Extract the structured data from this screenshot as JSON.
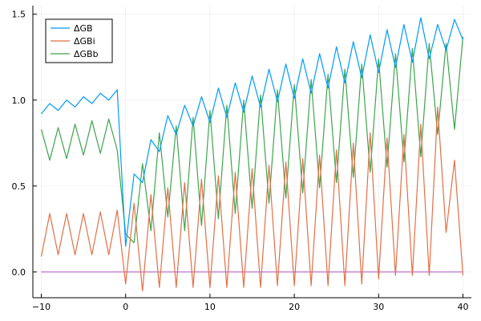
{
  "chart_data": {
    "type": "line",
    "title": "",
    "xlabel": "",
    "ylabel": "",
    "xlim": [
      -11,
      41
    ],
    "ylim": [
      -0.15,
      1.55
    ],
    "xticks": [
      -10,
      0,
      10,
      20,
      30,
      40
    ],
    "yticks": [
      0.0,
      0.5,
      1.0,
      1.5
    ],
    "xtick_labels": [
      "−10",
      "0",
      "10",
      "20",
      "30",
      "40"
    ],
    "ytick_labels": [
      "0.0",
      "0.5",
      "1.0",
      "1.5"
    ],
    "grid": true,
    "legend_position": "top-left",
    "x": [
      -10,
      -9,
      -8,
      -7,
      -6,
      -5,
      -4,
      -3,
      -2,
      -1,
      0,
      1,
      2,
      3,
      4,
      5,
      6,
      7,
      8,
      9,
      10,
      11,
      12,
      13,
      14,
      15,
      16,
      17,
      18,
      19,
      20,
      21,
      22,
      23,
      24,
      25,
      26,
      27,
      28,
      29,
      30,
      31,
      32,
      33,
      34,
      35,
      36,
      37,
      38,
      39,
      40
    ],
    "series": [
      {
        "name": "ΔGB",
        "color": "#009af9",
        "values": [
          0.92,
          0.98,
          0.94,
          1.0,
          0.96,
          1.02,
          0.98,
          1.04,
          1.0,
          1.06,
          0.15,
          0.57,
          0.52,
          0.77,
          0.7,
          0.91,
          0.8,
          0.97,
          0.85,
          1.02,
          0.87,
          1.07,
          0.9,
          1.1,
          0.93,
          1.14,
          0.96,
          1.18,
          0.99,
          1.21,
          1.01,
          1.24,
          1.04,
          1.27,
          1.07,
          1.31,
          1.1,
          1.34,
          1.13,
          1.38,
          1.16,
          1.41,
          1.19,
          1.44,
          1.22,
          1.48,
          1.24,
          1.44,
          1.29,
          1.47,
          1.35
        ]
      },
      {
        "name": "ΔGBi",
        "color": "#e26f46",
        "values": [
          0.09,
          0.34,
          0.1,
          0.34,
          0.1,
          0.34,
          0.1,
          0.35,
          0.1,
          0.36,
          -0.07,
          0.4,
          -0.11,
          0.45,
          -0.09,
          0.49,
          -0.09,
          0.52,
          -0.09,
          0.54,
          -0.09,
          0.56,
          -0.09,
          0.58,
          -0.09,
          0.6,
          -0.09,
          0.62,
          -0.08,
          0.64,
          -0.08,
          0.66,
          -0.08,
          0.68,
          -0.08,
          0.71,
          -0.08,
          0.75,
          -0.07,
          0.81,
          -0.04,
          0.78,
          -0.02,
          0.8,
          -0.02,
          0.86,
          -0.02,
          0.96,
          0.23,
          0.65,
          -0.02
        ]
      },
      {
        "name": "ΔGBb",
        "color": "#3da44d",
        "values": [
          0.83,
          0.65,
          0.84,
          0.66,
          0.86,
          0.68,
          0.88,
          0.69,
          0.89,
          0.71,
          0.22,
          0.17,
          0.63,
          0.24,
          0.81,
          0.32,
          0.85,
          0.24,
          0.9,
          0.27,
          0.94,
          0.31,
          0.97,
          0.34,
          1.0,
          0.37,
          1.03,
          0.4,
          1.06,
          0.43,
          1.09,
          0.46,
          1.12,
          0.49,
          1.15,
          0.52,
          1.18,
          0.55,
          1.21,
          0.58,
          1.24,
          0.61,
          1.27,
          0.64,
          1.3,
          0.67,
          1.33,
          0.8,
          1.33,
          0.83,
          1.37
        ]
      },
      {
        "name": "",
        "color": "#c271d2",
        "values": [
          0,
          0,
          0,
          0,
          0,
          0,
          0,
          0,
          0,
          0,
          0,
          0,
          0,
          0,
          0,
          0,
          0,
          0,
          0,
          0,
          0,
          0,
          0,
          0,
          0,
          0,
          0,
          0,
          0,
          0,
          0,
          0,
          0,
          0,
          0,
          0,
          0,
          0,
          0,
          0,
          0,
          0,
          0,
          0,
          0,
          0,
          0,
          0,
          0,
          0,
          0
        ]
      }
    ]
  }
}
